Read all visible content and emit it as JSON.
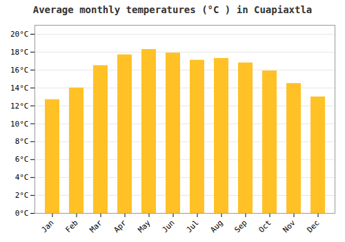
{
  "chart_data": {
    "type": "bar",
    "title": "Average monthly temperatures (°C ) in Cuapiaxtla",
    "categories": [
      "Jan",
      "Feb",
      "Mar",
      "Apr",
      "May",
      "Jun",
      "Jul",
      "Aug",
      "Sep",
      "Oct",
      "Nov",
      "Dec"
    ],
    "values": [
      12.7,
      14.0,
      16.5,
      17.7,
      18.3,
      17.9,
      17.1,
      17.3,
      16.8,
      15.9,
      14.5,
      13.0
    ],
    "color": "#FFC125",
    "ylim": [
      0,
      21
    ],
    "yticks": [
      {
        "value": 0,
        "label": "0°C"
      },
      {
        "value": 2,
        "label": "2°C"
      },
      {
        "value": 4,
        "label": "4°C"
      },
      {
        "value": 6,
        "label": "6°C"
      },
      {
        "value": 8,
        "label": "8°C"
      },
      {
        "value": 10,
        "label": "10°C"
      },
      {
        "value": 12,
        "label": "12°C"
      },
      {
        "value": 14,
        "label": "14°C"
      },
      {
        "value": 16,
        "label": "16°C"
      },
      {
        "value": 18,
        "label": "18°C"
      },
      {
        "value": 20,
        "label": "20°C"
      }
    ],
    "grid": true
  }
}
